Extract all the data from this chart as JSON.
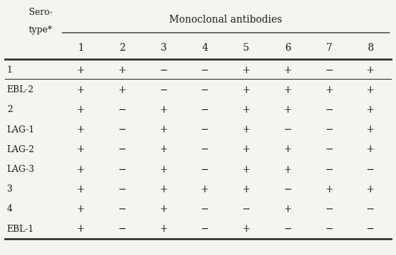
{
  "title": "Monoclonal antibodies",
  "col_header_label": "Sero-\ntype*",
  "col_headers": [
    "1",
    "2",
    "3",
    "4",
    "5",
    "6",
    "7",
    "8"
  ],
  "row_labels": [
    "1",
    "EBL-2",
    "2",
    "LAG-1",
    "LAG-2",
    "LAG-3",
    "3",
    "4",
    "EBL-1"
  ],
  "data": [
    [
      "+",
      "+",
      "−",
      "−",
      "+",
      "+",
      "−",
      "+"
    ],
    [
      "+",
      "+",
      "−",
      "−",
      "+",
      "+",
      "+",
      "+"
    ],
    [
      "+",
      "−",
      "+",
      "−",
      "+",
      "+",
      "−",
      "+"
    ],
    [
      "+",
      "−",
      "+",
      "−",
      "+",
      "−",
      "−",
      "+"
    ],
    [
      "+",
      "−",
      "+",
      "−",
      "+",
      "+",
      "−",
      "+"
    ],
    [
      "+",
      "−",
      "+",
      "−",
      "+",
      "+",
      "−",
      "−"
    ],
    [
      "+",
      "−",
      "+",
      "+",
      "+",
      "−",
      "+",
      "+"
    ],
    [
      "+",
      "−",
      "+",
      "−",
      "−",
      "+",
      "−",
      "−"
    ],
    [
      "+",
      "−",
      "+",
      "−",
      "+",
      "−",
      "−",
      "−"
    ]
  ],
  "bg_color": "#f5f5f0",
  "text_color": "#1a1a1a",
  "line_color": "#333333",
  "font_size": 9,
  "header_font_size": 10
}
